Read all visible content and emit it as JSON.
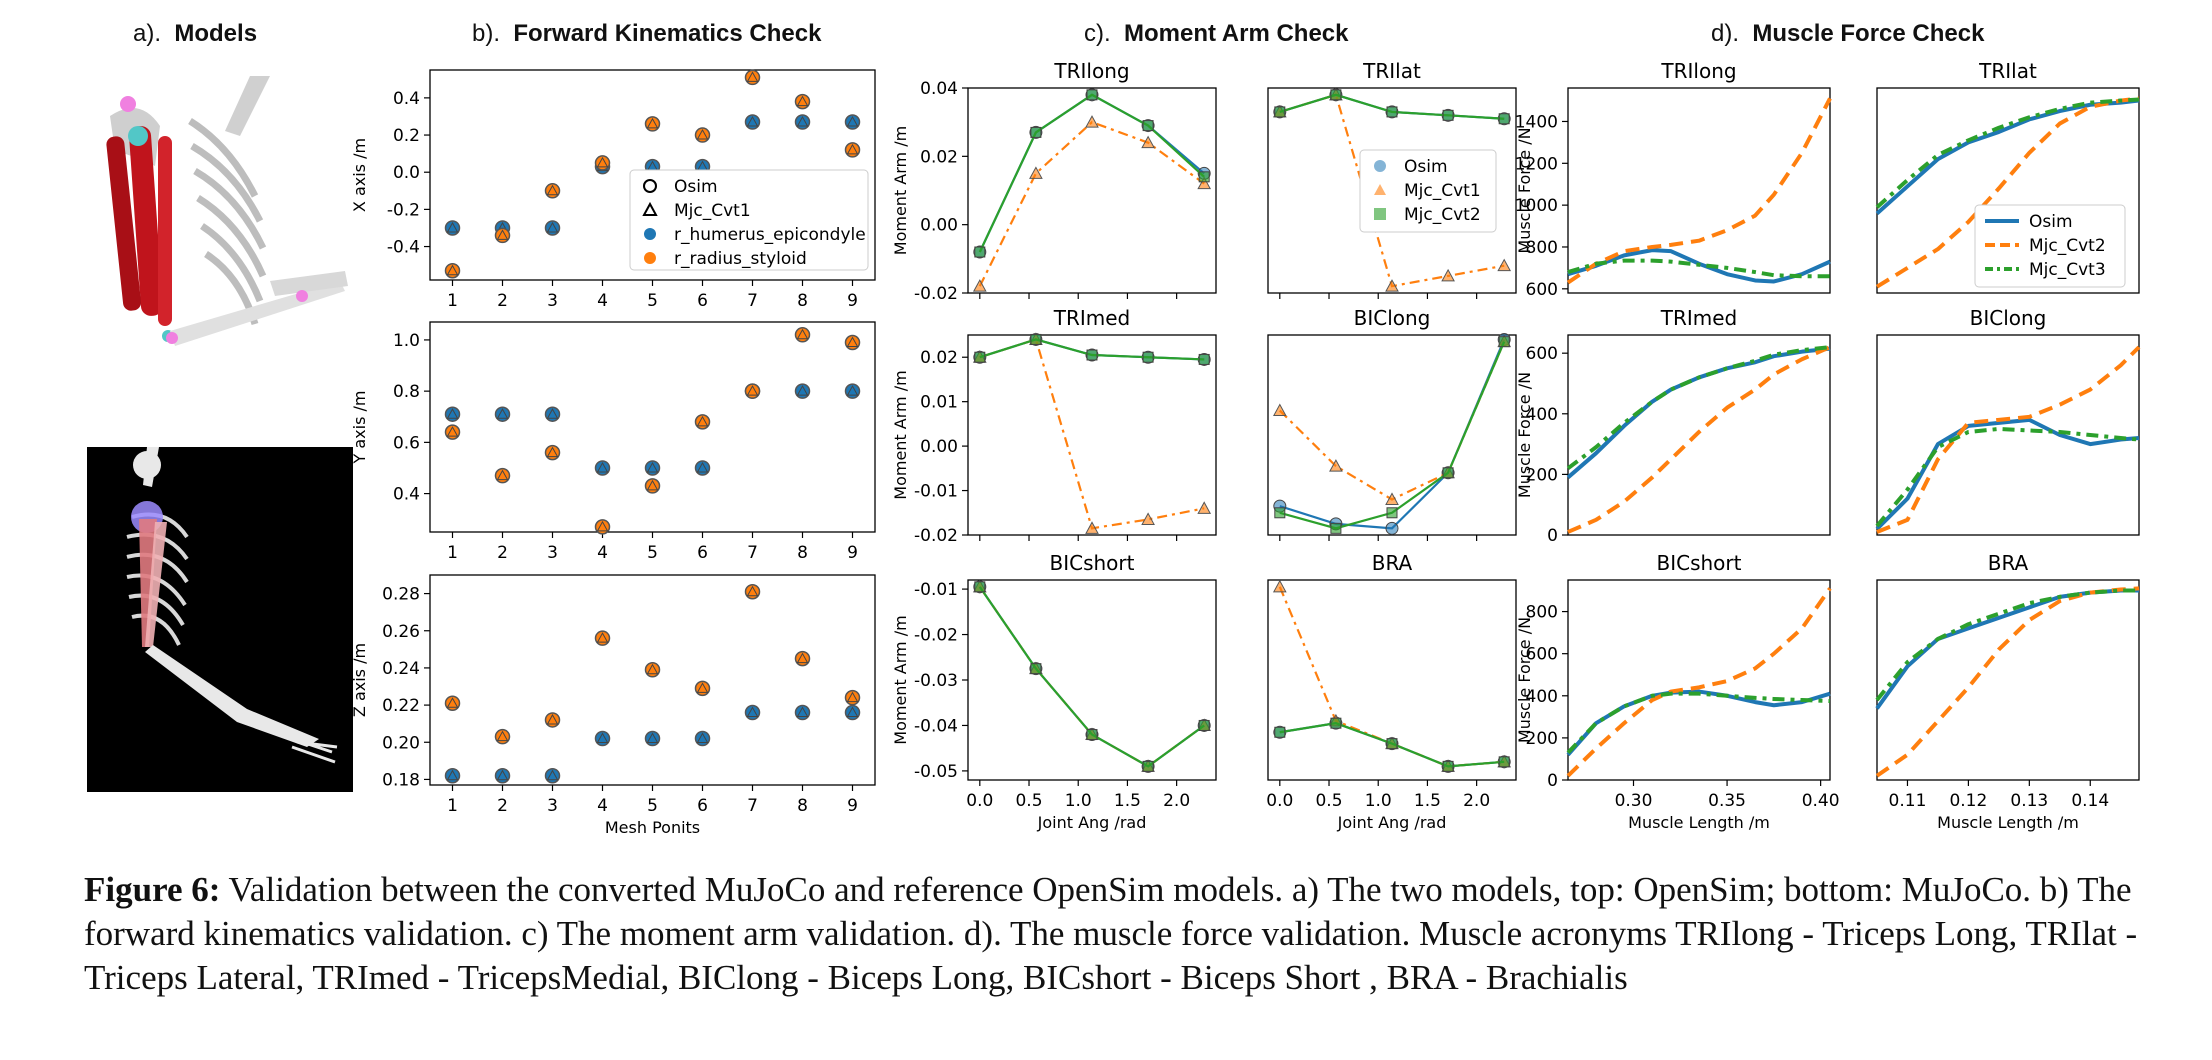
{
  "sections": {
    "a": {
      "prefix": "a).",
      "title": "Models"
    },
    "b": {
      "prefix": "b).",
      "title": "Forward Kinematics Check"
    },
    "c": {
      "prefix": "c).",
      "title": "Moment Arm Check"
    },
    "d": {
      "prefix": "d).",
      "title": "Muscle Force Check"
    }
  },
  "caption": {
    "label": "Figure 6:",
    "text": " Validation between the converted MuJoCo and reference OpenSim models. a) The two models, top: OpenSim; bottom: MuJoCo. b) The forward kinematics validation. c) The moment arm validation. d). The muscle force validation. Muscle acronyms TRIlong - Triceps Long, TRIlat - Triceps Lateral, TRImed - TricepsMedial, BIClong - Biceps Long, BICshort - Biceps Short , BRA - Brachialis"
  },
  "colors": {
    "blue": "#1f77b4",
    "orange": "#ff7f0e",
    "green": "#2ca02c",
    "black": "#000000",
    "gray_model": "#d9d9d9",
    "red_muscle": "#c0141c"
  },
  "fk": {
    "legend": [
      "Osim",
      "Mjc_Cvt1",
      "r_humerus_epicondyle",
      "r_radius_styloid"
    ],
    "xlabel": "Mesh Ponits",
    "chart_data": [
      {
        "type": "scatter",
        "ylabel": "X axis /m",
        "ylim": [
          -0.58,
          0.55
        ],
        "yticks": [
          -0.4,
          -0.2,
          0.0,
          0.2,
          0.4
        ],
        "x": [
          1,
          2,
          3,
          4,
          5,
          6,
          7,
          8,
          9
        ],
        "series": [
          {
            "name": "r_humerus_epicondyle",
            "values": [
              -0.3,
              -0.3,
              -0.3,
              0.03,
              0.03,
              0.03,
              0.27,
              0.27,
              0.27
            ]
          },
          {
            "name": "r_radius_styloid",
            "values": [
              -0.53,
              -0.34,
              -0.1,
              0.05,
              0.26,
              0.2,
              0.51,
              0.38,
              0.12
            ]
          }
        ]
      },
      {
        "type": "scatter",
        "ylabel": "Y axis /m",
        "ylim": [
          0.25,
          1.07
        ],
        "yticks": [
          0.4,
          0.6,
          0.8,
          1.0
        ],
        "x": [
          1,
          2,
          3,
          4,
          5,
          6,
          7,
          8,
          9
        ],
        "series": [
          {
            "name": "r_humerus_epicondyle",
            "values": [
              0.71,
              0.71,
              0.71,
              0.5,
              0.5,
              0.5,
              0.8,
              0.8,
              0.8
            ]
          },
          {
            "name": "r_radius_styloid",
            "values": [
              0.64,
              0.47,
              0.56,
              0.27,
              0.43,
              0.68,
              0.8,
              1.02,
              0.99
            ]
          }
        ]
      },
      {
        "type": "scatter",
        "ylabel": "Z axis /m",
        "ylim": [
          0.177,
          0.29
        ],
        "yticks": [
          0.18,
          0.2,
          0.22,
          0.24,
          0.26,
          0.28
        ],
        "x": [
          1,
          2,
          3,
          4,
          5,
          6,
          7,
          8,
          9
        ],
        "series": [
          {
            "name": "r_humerus_epicondyle",
            "values": [
              0.182,
              0.182,
              0.182,
              0.202,
              0.202,
              0.202,
              0.216,
              0.216,
              0.216
            ]
          },
          {
            "name": "r_radius_styloid",
            "values": [
              0.221,
              0.203,
              0.212,
              0.256,
              0.239,
              0.229,
              0.281,
              0.245,
              0.224
            ]
          }
        ]
      }
    ]
  },
  "moment": {
    "legend": [
      "Osim",
      "Mjc_Cvt1",
      "Mjc_Cvt2"
    ],
    "ylabel": "Moment Arm /m",
    "xlabel": "Joint Ang /rad",
    "x": [
      0.0,
      0.57,
      1.14,
      1.71,
      2.28
    ],
    "xticks": [
      0.0,
      0.5,
      1.0,
      1.5,
      2.0
    ],
    "chart_data": [
      {
        "type": "line",
        "title": "TRIlong",
        "ylim": [
          -0.02,
          0.04
        ],
        "yticks": [
          -0.02,
          0.0,
          0.02,
          0.04
        ],
        "series": [
          {
            "name": "Osim",
            "values": [
              -0.008,
              0.027,
              0.038,
              0.029,
              0.015
            ]
          },
          {
            "name": "Mjc_Cvt1",
            "values": [
              -0.018,
              0.015,
              0.03,
              0.024,
              0.012
            ]
          },
          {
            "name": "Mjc_Cvt2",
            "values": [
              -0.008,
              0.027,
              0.038,
              0.029,
              0.014
            ]
          }
        ]
      },
      {
        "type": "line",
        "title": "TRIlat",
        "ylim": [
          -0.02,
          0.04
        ],
        "yticks": [],
        "series": [
          {
            "name": "Osim",
            "values": [
              0.033,
              0.038,
              0.033,
              0.032,
              0.031
            ]
          },
          {
            "name": "Mjc_Cvt1",
            "values": [
              0.033,
              0.038,
              -0.018,
              -0.015,
              -0.012
            ]
          },
          {
            "name": "Mjc_Cvt2",
            "values": [
              0.033,
              0.038,
              0.033,
              0.032,
              0.031
            ]
          }
        ]
      },
      {
        "type": "line",
        "title": "TRImed",
        "ylim": [
          -0.02,
          0.025
        ],
        "yticks": [
          -0.02,
          -0.01,
          0.0,
          0.01,
          0.02
        ],
        "series": [
          {
            "name": "Osim",
            "values": [
              0.02,
              0.024,
              0.0205,
              0.02,
              0.0195
            ]
          },
          {
            "name": "Mjc_Cvt1",
            "values": [
              0.02,
              0.024,
              -0.0185,
              -0.0165,
              -0.014
            ]
          },
          {
            "name": "Mjc_Cvt2",
            "values": [
              0.02,
              0.024,
              0.0205,
              0.02,
              0.0195
            ]
          }
        ]
      },
      {
        "type": "line",
        "title": "BIClong",
        "ylim": [
          -0.02,
          0.025
        ],
        "yticks": [],
        "series": [
          {
            "name": "Osim",
            "values": [
              -0.0135,
              -0.0175,
              -0.0185,
              -0.006,
              0.024
            ]
          },
          {
            "name": "Mjc_Cvt1",
            "values": [
              0.008,
              -0.0045,
              -0.012,
              -0.006,
              0.0235
            ]
          },
          {
            "name": "Mjc_Cvt2",
            "values": [
              -0.015,
              -0.0185,
              -0.015,
              -0.006,
              0.0235
            ]
          }
        ]
      },
      {
        "type": "line",
        "title": "BICshort",
        "ylim": [
          -0.052,
          -0.008
        ],
        "yticks": [
          -0.05,
          -0.04,
          -0.03,
          -0.02,
          -0.01
        ],
        "series": [
          {
            "name": "Osim",
            "values": [
              -0.0095,
              -0.0275,
              -0.042,
              -0.049,
              -0.04
            ]
          },
          {
            "name": "Mjc_Cvt1",
            "values": [
              -0.0095,
              -0.0275,
              -0.042,
              -0.049,
              -0.04
            ]
          },
          {
            "name": "Mjc_Cvt2",
            "values": [
              -0.0095,
              -0.0275,
              -0.042,
              -0.049,
              -0.04
            ]
          }
        ]
      },
      {
        "type": "line",
        "title": "BRA",
        "ylim": [
          -0.052,
          -0.008
        ],
        "yticks": [],
        "series": [
          {
            "name": "Osim",
            "values": [
              -0.0415,
              -0.0395,
              -0.044,
              -0.049,
              -0.048
            ]
          },
          {
            "name": "Mjc_Cvt1",
            "values": [
              -0.0095,
              -0.039,
              -0.044,
              -0.049,
              -0.048
            ]
          },
          {
            "name": "Mjc_Cvt2",
            "values": [
              -0.0415,
              -0.0395,
              -0.044,
              -0.049,
              -0.048
            ]
          }
        ]
      }
    ]
  },
  "force": {
    "legend": [
      "Osim",
      "Mjc_Cvt2",
      "Mjc_Cvt3"
    ],
    "ylabel": "Muscle Force /N",
    "xlabel": "Muscle Length /m",
    "chart_data": [
      {
        "type": "line",
        "title": "TRIlong",
        "xlim": [
          0.265,
          0.405
        ],
        "ylim": [
          580,
          1560
        ],
        "yticks": [
          600,
          800,
          1000,
          1200,
          1400
        ],
        "xticks": [],
        "x": [
          0.265,
          0.28,
          0.295,
          0.31,
          0.32,
          0.335,
          0.35,
          0.365,
          0.375,
          0.39,
          0.405
        ],
        "series": [
          {
            "name": "Osim",
            "values": [
              670,
              710,
              760,
              785,
              780,
              720,
              670,
              640,
              635,
              670,
              730
            ]
          },
          {
            "name": "Mjc_Cvt2",
            "values": [
              630,
              720,
              780,
              800,
              810,
              830,
              880,
              950,
              1050,
              1250,
              1510
            ]
          },
          {
            "name": "Mjc_Cvt3",
            "values": [
              680,
              720,
              735,
              735,
              730,
              715,
              700,
              680,
              665,
              660,
              660
            ]
          }
        ]
      },
      {
        "type": "line",
        "title": "TRIlat",
        "xlim": [
          0.105,
          0.148
        ],
        "ylim": [
          580,
          1560
        ],
        "yticks": [],
        "xticks": [],
        "x": [
          0.105,
          0.11,
          0.115,
          0.12,
          0.125,
          0.13,
          0.135,
          0.14,
          0.145,
          0.148
        ],
        "series": [
          {
            "name": "Osim",
            "values": [
              960,
              1090,
              1220,
              1300,
              1350,
              1410,
              1450,
              1480,
              1490,
              1500
            ]
          },
          {
            "name": "Mjc_Cvt2",
            "values": [
              610,
              700,
              790,
              920,
              1080,
              1250,
              1390,
              1470,
              1500,
              1510
            ]
          },
          {
            "name": "Mjc_Cvt3",
            "values": [
              990,
              1120,
              1240,
              1310,
              1370,
              1420,
              1460,
              1490,
              1500,
              1505
            ]
          }
        ]
      },
      {
        "type": "line",
        "title": "TRImed",
        "xlim": [
          0.265,
          0.405
        ],
        "ylim": [
          0,
          660
        ],
        "yticks": [
          0,
          200,
          400,
          600
        ],
        "xticks": [],
        "x": [
          0.265,
          0.28,
          0.295,
          0.31,
          0.32,
          0.335,
          0.35,
          0.365,
          0.375,
          0.39,
          0.405
        ],
        "series": [
          {
            "name": "Osim",
            "values": [
              190,
              270,
              360,
              440,
              480,
              520,
              550,
              570,
              590,
              605,
              615
            ]
          },
          {
            "name": "Mjc_Cvt2",
            "values": [
              10,
              50,
              110,
              190,
              250,
              340,
              420,
              480,
              530,
              580,
              620
            ]
          },
          {
            "name": "Mjc_Cvt3",
            "values": [
              220,
              290,
              370,
              440,
              480,
              520,
              550,
              575,
              595,
              610,
              620
            ]
          }
        ]
      },
      {
        "type": "line",
        "title": "BIClong",
        "xlim": [
          0.105,
          0.148
        ],
        "ylim": [
          0,
          660
        ],
        "yticks": [],
        "xticks": [],
        "x": [
          0.105,
          0.11,
          0.115,
          0.12,
          0.125,
          0.13,
          0.135,
          0.14,
          0.145,
          0.148
        ],
        "series": [
          {
            "name": "Osim",
            "values": [
              20,
              120,
              300,
              360,
              370,
              380,
              330,
              300,
              315,
              320
            ]
          },
          {
            "name": "Mjc_Cvt2",
            "values": [
              10,
              50,
              250,
              370,
              380,
              390,
              430,
              480,
              560,
              620
            ]
          },
          {
            "name": "Mjc_Cvt3",
            "values": [
              30,
              150,
              290,
              340,
              350,
              345,
              340,
              330,
              320,
              315
            ]
          }
        ]
      },
      {
        "type": "line",
        "title": "BICshort",
        "xlim": [
          0.265,
          0.405
        ],
        "ylim": [
          0,
          950
        ],
        "yticks": [
          0,
          200,
          400,
          600,
          800
        ],
        "xticks": [
          0.3,
          0.35,
          0.4
        ],
        "x": [
          0.265,
          0.28,
          0.295,
          0.31,
          0.32,
          0.335,
          0.35,
          0.365,
          0.375,
          0.39,
          0.405
        ],
        "series": [
          {
            "name": "Osim",
            "values": [
              120,
              270,
              350,
              400,
              415,
              420,
              400,
              370,
              355,
              370,
              410
            ]
          },
          {
            "name": "Mjc_Cvt2",
            "values": [
              20,
              150,
              270,
              380,
              420,
              440,
              470,
              530,
              600,
              720,
              910
            ]
          },
          {
            "name": "Mjc_Cvt3",
            "values": [
              130,
              270,
              350,
              400,
              410,
              410,
              400,
              390,
              385,
              380,
              375
            ]
          }
        ]
      },
      {
        "type": "line",
        "title": "BRA",
        "xlim": [
          0.105,
          0.148
        ],
        "ylim": [
          0,
          950
        ],
        "yticks": [],
        "xticks": [
          0.11,
          0.12,
          0.13,
          0.14
        ],
        "x": [
          0.105,
          0.11,
          0.115,
          0.12,
          0.125,
          0.13,
          0.135,
          0.14,
          0.145,
          0.148
        ],
        "series": [
          {
            "name": "Osim",
            "values": [
              340,
              540,
              670,
              720,
              770,
              820,
              870,
              890,
              900,
              900
            ]
          },
          {
            "name": "Mjc_Cvt2",
            "values": [
              20,
              120,
              280,
              440,
              620,
              760,
              850,
              890,
              905,
              910
            ]
          },
          {
            "name": "Mjc_Cvt3",
            "values": [
              380,
              560,
              670,
              740,
              790,
              840,
              870,
              890,
              900,
              900
            ]
          }
        ]
      }
    ]
  },
  "moment_ylabels_shown": [
    true,
    false,
    true,
    false,
    true,
    false
  ],
  "force_ylabels_shown": [
    true,
    false,
    true,
    false,
    true,
    false
  ]
}
